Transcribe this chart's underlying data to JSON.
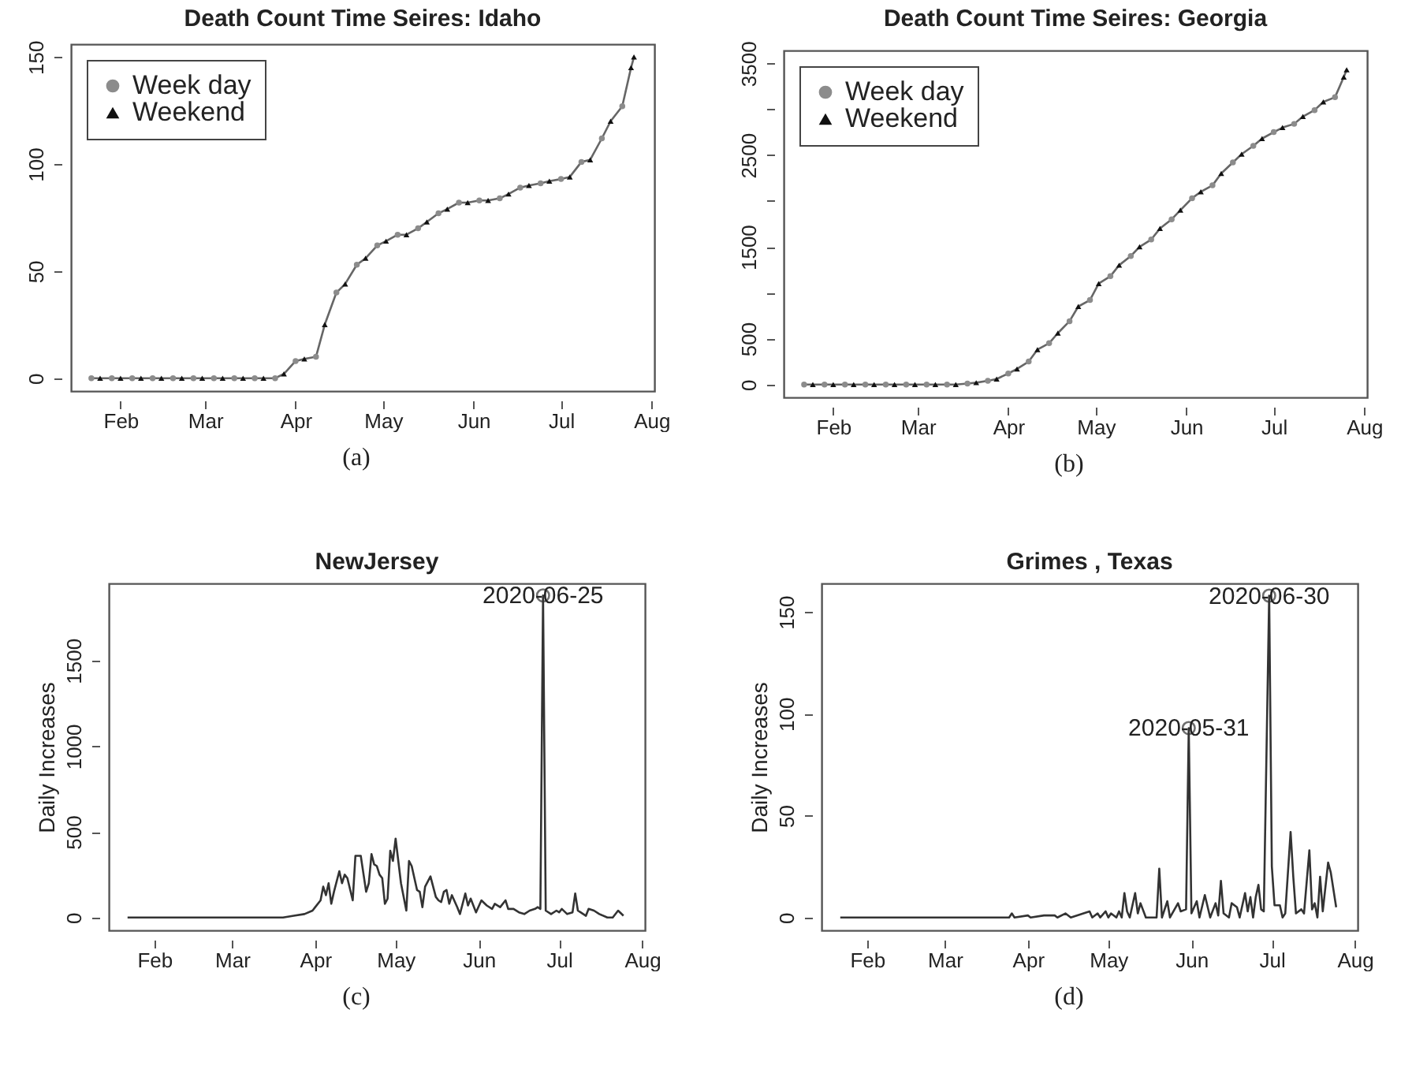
{
  "chart_data": [
    {
      "type": "line",
      "title": "Death Count Time Seires: Idaho",
      "legend": "top left",
      "annotations": [
        "(a)"
      ],
      "xlim": [
        "2020-01-15",
        "2020-08-02"
      ],
      "xticks": [
        {
          "value": "2020-02-01",
          "label": "Feb"
        },
        {
          "value": "2020-03-01",
          "label": "Mar"
        },
        {
          "value": "2020-04-01",
          "label": "Apr"
        },
        {
          "value": "2020-05-01",
          "label": "May"
        },
        {
          "value": "2020-06-01",
          "label": "Jun"
        },
        {
          "value": "2020-07-01",
          "label": "Jul"
        },
        {
          "value": "2020-08-01",
          "label": "Aug"
        }
      ],
      "ylim": [
        -6,
        156
      ],
      "yticks": [
        0,
        50,
        100,
        150
      ],
      "series": [
        {
          "type": "line",
          "color": "#666666",
          "x": [
            "2020-01-22",
            "2020-01-25",
            "2020-01-29",
            "2020-02-01",
            "2020-02-05",
            "2020-02-08",
            "2020-02-12",
            "2020-02-15",
            "2020-02-19",
            "2020-02-22",
            "2020-02-26",
            "2020-02-29",
            "2020-03-04",
            "2020-03-07",
            "2020-03-11",
            "2020-03-14",
            "2020-03-18",
            "2020-03-21",
            "2020-03-25",
            "2020-03-28",
            "2020-04-01",
            "2020-04-04",
            "2020-04-08",
            "2020-04-11",
            "2020-04-15",
            "2020-04-18",
            "2020-04-22",
            "2020-04-25",
            "2020-04-29",
            "2020-05-02",
            "2020-05-06",
            "2020-05-09",
            "2020-05-13",
            "2020-05-16",
            "2020-05-20",
            "2020-05-23",
            "2020-05-27",
            "2020-05-30",
            "2020-06-03",
            "2020-06-06",
            "2020-06-10",
            "2020-06-13",
            "2020-06-17",
            "2020-06-20",
            "2020-06-24",
            "2020-06-27",
            "2020-07-01",
            "2020-07-04",
            "2020-07-08",
            "2020-07-11",
            "2020-07-15",
            "2020-07-18",
            "2020-07-22",
            "2020-07-25",
            "2020-07-26"
          ],
          "values": [
            0,
            0,
            0,
            0,
            0,
            0,
            0,
            0,
            0,
            0,
            0,
            0,
            0,
            0,
            0,
            0,
            0,
            0,
            0,
            2,
            8,
            9,
            10,
            25,
            40,
            44,
            53,
            56,
            62,
            64,
            67,
            67,
            70,
            73,
            77,
            79,
            82,
            82,
            83,
            83,
            84,
            86,
            89,
            90,
            91,
            92,
            93,
            94,
            101,
            102,
            112,
            120,
            127,
            145,
            150
          ]
        },
        {
          "name": "Week day",
          "type": "scatter",
          "marker": "circle",
          "color": "#8c8c8c",
          "x": [
            "2020-01-22",
            "2020-01-29",
            "2020-02-05",
            "2020-02-12",
            "2020-02-19",
            "2020-02-26",
            "2020-03-04",
            "2020-03-11",
            "2020-03-18",
            "2020-03-25",
            "2020-04-01",
            "2020-04-08",
            "2020-04-15",
            "2020-04-22",
            "2020-04-29",
            "2020-05-06",
            "2020-05-13",
            "2020-05-20",
            "2020-05-27",
            "2020-06-03",
            "2020-06-10",
            "2020-06-17",
            "2020-06-24",
            "2020-07-01",
            "2020-07-08",
            "2020-07-15",
            "2020-07-22"
          ],
          "values": [
            0,
            0,
            0,
            0,
            0,
            0,
            0,
            0,
            0,
            0,
            8,
            10,
            40,
            53,
            62,
            67,
            70,
            77,
            82,
            83,
            84,
            89,
            91,
            93,
            101,
            112,
            127
          ]
        },
        {
          "name": "Weekend",
          "type": "scatter",
          "marker": "triangle",
          "color": "#111111",
          "x": [
            "2020-01-25",
            "2020-02-01",
            "2020-02-08",
            "2020-02-15",
            "2020-02-22",
            "2020-02-29",
            "2020-03-07",
            "2020-03-14",
            "2020-03-21",
            "2020-03-28",
            "2020-04-04",
            "2020-04-11",
            "2020-04-18",
            "2020-04-25",
            "2020-05-02",
            "2020-05-09",
            "2020-05-16",
            "2020-05-23",
            "2020-05-30",
            "2020-06-06",
            "2020-06-13",
            "2020-06-20",
            "2020-06-27",
            "2020-07-04",
            "2020-07-11",
            "2020-07-18",
            "2020-07-25",
            "2020-07-26"
          ],
          "values": [
            0,
            0,
            0,
            0,
            0,
            0,
            0,
            0,
            0,
            2,
            9,
            25,
            44,
            56,
            64,
            67,
            73,
            79,
            82,
            83,
            86,
            90,
            92,
            94,
            102,
            120,
            145,
            150
          ]
        }
      ]
    },
    {
      "type": "line",
      "title": "Death Count Time Seires: Georgia",
      "legend": "top left",
      "annotations": [
        "(b)"
      ],
      "xlim": [
        "2020-01-15",
        "2020-08-02"
      ],
      "xticks": [
        {
          "value": "2020-02-01",
          "label": "Feb"
        },
        {
          "value": "2020-03-01",
          "label": "Mar"
        },
        {
          "value": "2020-04-01",
          "label": "Apr"
        },
        {
          "value": "2020-05-01",
          "label": "May"
        },
        {
          "value": "2020-06-01",
          "label": "Jun"
        },
        {
          "value": "2020-07-01",
          "label": "Jul"
        },
        {
          "value": "2020-08-01",
          "label": "Aug"
        }
      ],
      "ylim": [
        -140,
        3640
      ],
      "yticks": [
        0,
        500,
        {
          "value": 1000,
          "label": null
        },
        1500,
        {
          "value": 2000,
          "label": null
        },
        2500,
        {
          "value": 3000,
          "label": null
        },
        3500
      ],
      "series": [
        {
          "type": "line",
          "color": "#666666",
          "x": [
            "2020-01-22",
            "2020-01-25",
            "2020-01-29",
            "2020-02-01",
            "2020-02-05",
            "2020-02-08",
            "2020-02-12",
            "2020-02-15",
            "2020-02-19",
            "2020-02-22",
            "2020-02-26",
            "2020-02-29",
            "2020-03-04",
            "2020-03-07",
            "2020-03-11",
            "2020-03-14",
            "2020-03-18",
            "2020-03-21",
            "2020-03-25",
            "2020-03-28",
            "2020-04-01",
            "2020-04-04",
            "2020-04-08",
            "2020-04-11",
            "2020-04-15",
            "2020-04-18",
            "2020-04-22",
            "2020-04-25",
            "2020-04-29",
            "2020-05-02",
            "2020-05-06",
            "2020-05-09",
            "2020-05-13",
            "2020-05-16",
            "2020-05-20",
            "2020-05-23",
            "2020-05-27",
            "2020-05-30",
            "2020-06-03",
            "2020-06-06",
            "2020-06-10",
            "2020-06-13",
            "2020-06-17",
            "2020-06-20",
            "2020-06-24",
            "2020-06-27",
            "2020-07-01",
            "2020-07-04",
            "2020-07-08",
            "2020-07-11",
            "2020-07-15",
            "2020-07-18",
            "2020-07-22",
            "2020-07-25",
            "2020-07-26"
          ],
          "values": [
            0,
            0,
            0,
            0,
            0,
            0,
            0,
            0,
            0,
            0,
            0,
            0,
            0,
            0,
            0,
            0,
            10,
            20,
            40,
            60,
            120,
            170,
            250,
            380,
            450,
            560,
            690,
            850,
            920,
            1100,
            1180,
            1300,
            1400,
            1500,
            1580,
            1700,
            1800,
            1900,
            2030,
            2100,
            2170,
            2300,
            2420,
            2510,
            2600,
            2680,
            2750,
            2800,
            2840,
            2920,
            2990,
            3080,
            3130,
            3350,
            3430
          ]
        },
        {
          "name": "Week day",
          "type": "scatter",
          "marker": "circle",
          "color": "#8c8c8c",
          "x": [
            "2020-01-22",
            "2020-01-29",
            "2020-02-05",
            "2020-02-12",
            "2020-02-19",
            "2020-02-26",
            "2020-03-04",
            "2020-03-11",
            "2020-03-18",
            "2020-03-25",
            "2020-04-01",
            "2020-04-08",
            "2020-04-15",
            "2020-04-22",
            "2020-04-29",
            "2020-05-06",
            "2020-05-13",
            "2020-05-20",
            "2020-05-27",
            "2020-06-03",
            "2020-06-10",
            "2020-06-17",
            "2020-06-24",
            "2020-07-01",
            "2020-07-08",
            "2020-07-15",
            "2020-07-22"
          ],
          "values": [
            0,
            0,
            0,
            0,
            0,
            0,
            0,
            0,
            10,
            40,
            120,
            250,
            450,
            690,
            920,
            1180,
            1400,
            1580,
            1800,
            2030,
            2170,
            2420,
            2600,
            2750,
            2840,
            2990,
            3130
          ]
        },
        {
          "name": "Weekend",
          "type": "scatter",
          "marker": "triangle",
          "color": "#111111",
          "x": [
            "2020-01-25",
            "2020-02-01",
            "2020-02-08",
            "2020-02-15",
            "2020-02-22",
            "2020-02-29",
            "2020-03-07",
            "2020-03-14",
            "2020-03-21",
            "2020-03-28",
            "2020-04-04",
            "2020-04-11",
            "2020-04-18",
            "2020-04-25",
            "2020-05-02",
            "2020-05-09",
            "2020-05-16",
            "2020-05-23",
            "2020-05-30",
            "2020-06-06",
            "2020-06-13",
            "2020-06-20",
            "2020-06-27",
            "2020-07-04",
            "2020-07-11",
            "2020-07-18",
            "2020-07-25",
            "2020-07-26"
          ],
          "values": [
            0,
            0,
            0,
            0,
            0,
            0,
            0,
            0,
            20,
            60,
            170,
            380,
            560,
            850,
            1100,
            1300,
            1500,
            1700,
            1900,
            2100,
            2300,
            2510,
            2680,
            2800,
            2920,
            3080,
            3350,
            3430
          ]
        }
      ]
    },
    {
      "type": "line",
      "title": "NewJersey",
      "ylabel": "Daily Increases",
      "annotations": [
        {
          "text": "2020-06-25",
          "x": "2020-06-25",
          "y": 1880
        },
        "(c)"
      ],
      "xlim": [
        "2020-01-15",
        "2020-08-02"
      ],
      "xticks": [
        {
          "value": "2020-02-01",
          "label": "Feb"
        },
        {
          "value": "2020-03-01",
          "label": "Mar"
        },
        {
          "value": "2020-04-01",
          "label": "Apr"
        },
        {
          "value": "2020-05-01",
          "label": "May"
        },
        {
          "value": "2020-06-01",
          "label": "Jun"
        },
        {
          "value": "2020-07-01",
          "label": "Jul"
        },
        {
          "value": "2020-08-01",
          "label": "Aug"
        }
      ],
      "ylim": [
        -75,
        1950
      ],
      "yticks": [
        0,
        500,
        1000,
        1500
      ],
      "series": [
        {
          "type": "line",
          "color": "#333333",
          "x": [
            "2020-01-22",
            "2020-03-20",
            "2020-03-24",
            "2020-03-28",
            "2020-03-31",
            "2020-04-01",
            "2020-04-03",
            "2020-04-04",
            "2020-04-05",
            "2020-04-06",
            "2020-04-07",
            "2020-04-08",
            "2020-04-10",
            "2020-04-11",
            "2020-04-12",
            "2020-04-13",
            "2020-04-15",
            "2020-04-16",
            "2020-04-18",
            "2020-04-20",
            "2020-04-21",
            "2020-04-22",
            "2020-04-23",
            "2020-04-24",
            "2020-04-25",
            "2020-04-26",
            "2020-04-27",
            "2020-04-28",
            "2020-04-29",
            "2020-04-30",
            "2020-05-01",
            "2020-05-03",
            "2020-05-05",
            "2020-05-06",
            "2020-05-07",
            "2020-05-09",
            "2020-05-10",
            "2020-05-11",
            "2020-05-12",
            "2020-05-14",
            "2020-05-16",
            "2020-05-17",
            "2020-05-18",
            "2020-05-19",
            "2020-05-20",
            "2020-05-21",
            "2020-05-22",
            "2020-05-24",
            "2020-05-25",
            "2020-05-27",
            "2020-05-28",
            "2020-05-29",
            "2020-05-31",
            "2020-06-02",
            "2020-06-04",
            "2020-06-06",
            "2020-06-07",
            "2020-06-09",
            "2020-06-11",
            "2020-06-12",
            "2020-06-14",
            "2020-06-16",
            "2020-06-18",
            "2020-06-20",
            "2020-06-22",
            "2020-06-23",
            "2020-06-24",
            "2020-06-25",
            "2020-06-26",
            "2020-06-28",
            "2020-06-30",
            "2020-07-01",
            "2020-07-02",
            "2020-07-04",
            "2020-07-06",
            "2020-07-07",
            "2020-07-08",
            "2020-07-09",
            "2020-07-11",
            "2020-07-12",
            "2020-07-14",
            "2020-07-16",
            "2020-07-19",
            "2020-07-21",
            "2020-07-23",
            "2020-07-25"
          ],
          "values": [
            0,
            0,
            10,
            20,
            40,
            60,
            100,
            180,
            130,
            200,
            80,
            150,
            270,
            200,
            250,
            230,
            100,
            360,
            360,
            150,
            200,
            370,
            310,
            300,
            250,
            230,
            80,
            110,
            390,
            330,
            460,
            200,
            40,
            330,
            300,
            160,
            150,
            60,
            180,
            240,
            120,
            100,
            90,
            150,
            160,
            80,
            130,
            60,
            20,
            140,
            70,
            110,
            30,
            100,
            70,
            50,
            80,
            60,
            100,
            50,
            50,
            30,
            20,
            40,
            50,
            60,
            50,
            1880,
            40,
            20,
            40,
            30,
            50,
            20,
            30,
            140,
            40,
            30,
            10,
            50,
            40,
            20,
            0,
            0,
            40,
            10
          ]
        }
      ]
    },
    {
      "type": "line",
      "title": "Grimes , Texas",
      "ylabel": "Daily Increases",
      "annotations": [
        {
          "text": "2020-05-31",
          "x": "2020-05-31",
          "y": 93
        },
        {
          "text": "2020-06-30",
          "x": "2020-06-30",
          "y": 158
        },
        "(d)"
      ],
      "xlim": [
        "2020-01-15",
        "2020-08-02"
      ],
      "xticks": [
        {
          "value": "2020-02-01",
          "label": "Feb"
        },
        {
          "value": "2020-03-01",
          "label": "Mar"
        },
        {
          "value": "2020-04-01",
          "label": "Apr"
        },
        {
          "value": "2020-05-01",
          "label": "May"
        },
        {
          "value": "2020-06-01",
          "label": "Jun"
        },
        {
          "value": "2020-07-01",
          "label": "Jul"
        },
        {
          "value": "2020-08-01",
          "label": "Aug"
        }
      ],
      "ylim": [
        -6.3,
        164
      ],
      "yticks": [
        0,
        50,
        100,
        150
      ],
      "series": [
        {
          "type": "line",
          "color": "#333333",
          "x": [
            "2020-01-22",
            "2020-03-25",
            "2020-03-26",
            "2020-03-27",
            "2020-04-01",
            "2020-04-02",
            "2020-04-07",
            "2020-04-09",
            "2020-04-11",
            "2020-04-12",
            "2020-04-15",
            "2020-04-17",
            "2020-04-24",
            "2020-04-25",
            "2020-04-27",
            "2020-04-28",
            "2020-04-30",
            "2020-05-01",
            "2020-05-02",
            "2020-05-04",
            "2020-05-05",
            "2020-05-06",
            "2020-05-07",
            "2020-05-08",
            "2020-05-09",
            "2020-05-11",
            "2020-05-12",
            "2020-05-13",
            "2020-05-15",
            "2020-05-19",
            "2020-05-20",
            "2020-05-21",
            "2020-05-23",
            "2020-05-24",
            "2020-05-27",
            "2020-05-28",
            "2020-05-30",
            "2020-05-31",
            "2020-06-01",
            "2020-06-03",
            "2020-06-04",
            "2020-06-06",
            "2020-06-08",
            "2020-06-10",
            "2020-06-11",
            "2020-06-12",
            "2020-06-13",
            "2020-06-15",
            "2020-06-16",
            "2020-06-18",
            "2020-06-19",
            "2020-06-21",
            "2020-06-22",
            "2020-06-23",
            "2020-06-24",
            "2020-06-25",
            "2020-06-26",
            "2020-06-27",
            "2020-06-28",
            "2020-06-30",
            "2020-07-01",
            "2020-07-02",
            "2020-07-04",
            "2020-07-05",
            "2020-07-06",
            "2020-07-08",
            "2020-07-09",
            "2020-07-10",
            "2020-07-12",
            "2020-07-13",
            "2020-07-15",
            "2020-07-16",
            "2020-07-17",
            "2020-07-18",
            "2020-07-19",
            "2020-07-20",
            "2020-07-22",
            "2020-07-23",
            "2020-07-25"
          ],
          "values": [
            0,
            0,
            2,
            0,
            1,
            0,
            1,
            1,
            1,
            0,
            2,
            0,
            3,
            0,
            2,
            0,
            3,
            0,
            2,
            0,
            3,
            0,
            12,
            3,
            0,
            12,
            2,
            7,
            0,
            0,
            24,
            0,
            8,
            0,
            7,
            3,
            4,
            93,
            2,
            8,
            0,
            11,
            0,
            7,
            1,
            18,
            2,
            0,
            7,
            5,
            0,
            12,
            3,
            10,
            0,
            10,
            16,
            4,
            3,
            158,
            25,
            6,
            6,
            0,
            2,
            42,
            20,
            2,
            4,
            2,
            33,
            4,
            7,
            0,
            20,
            3,
            27,
            22,
            5
          ]
        }
      ]
    }
  ]
}
